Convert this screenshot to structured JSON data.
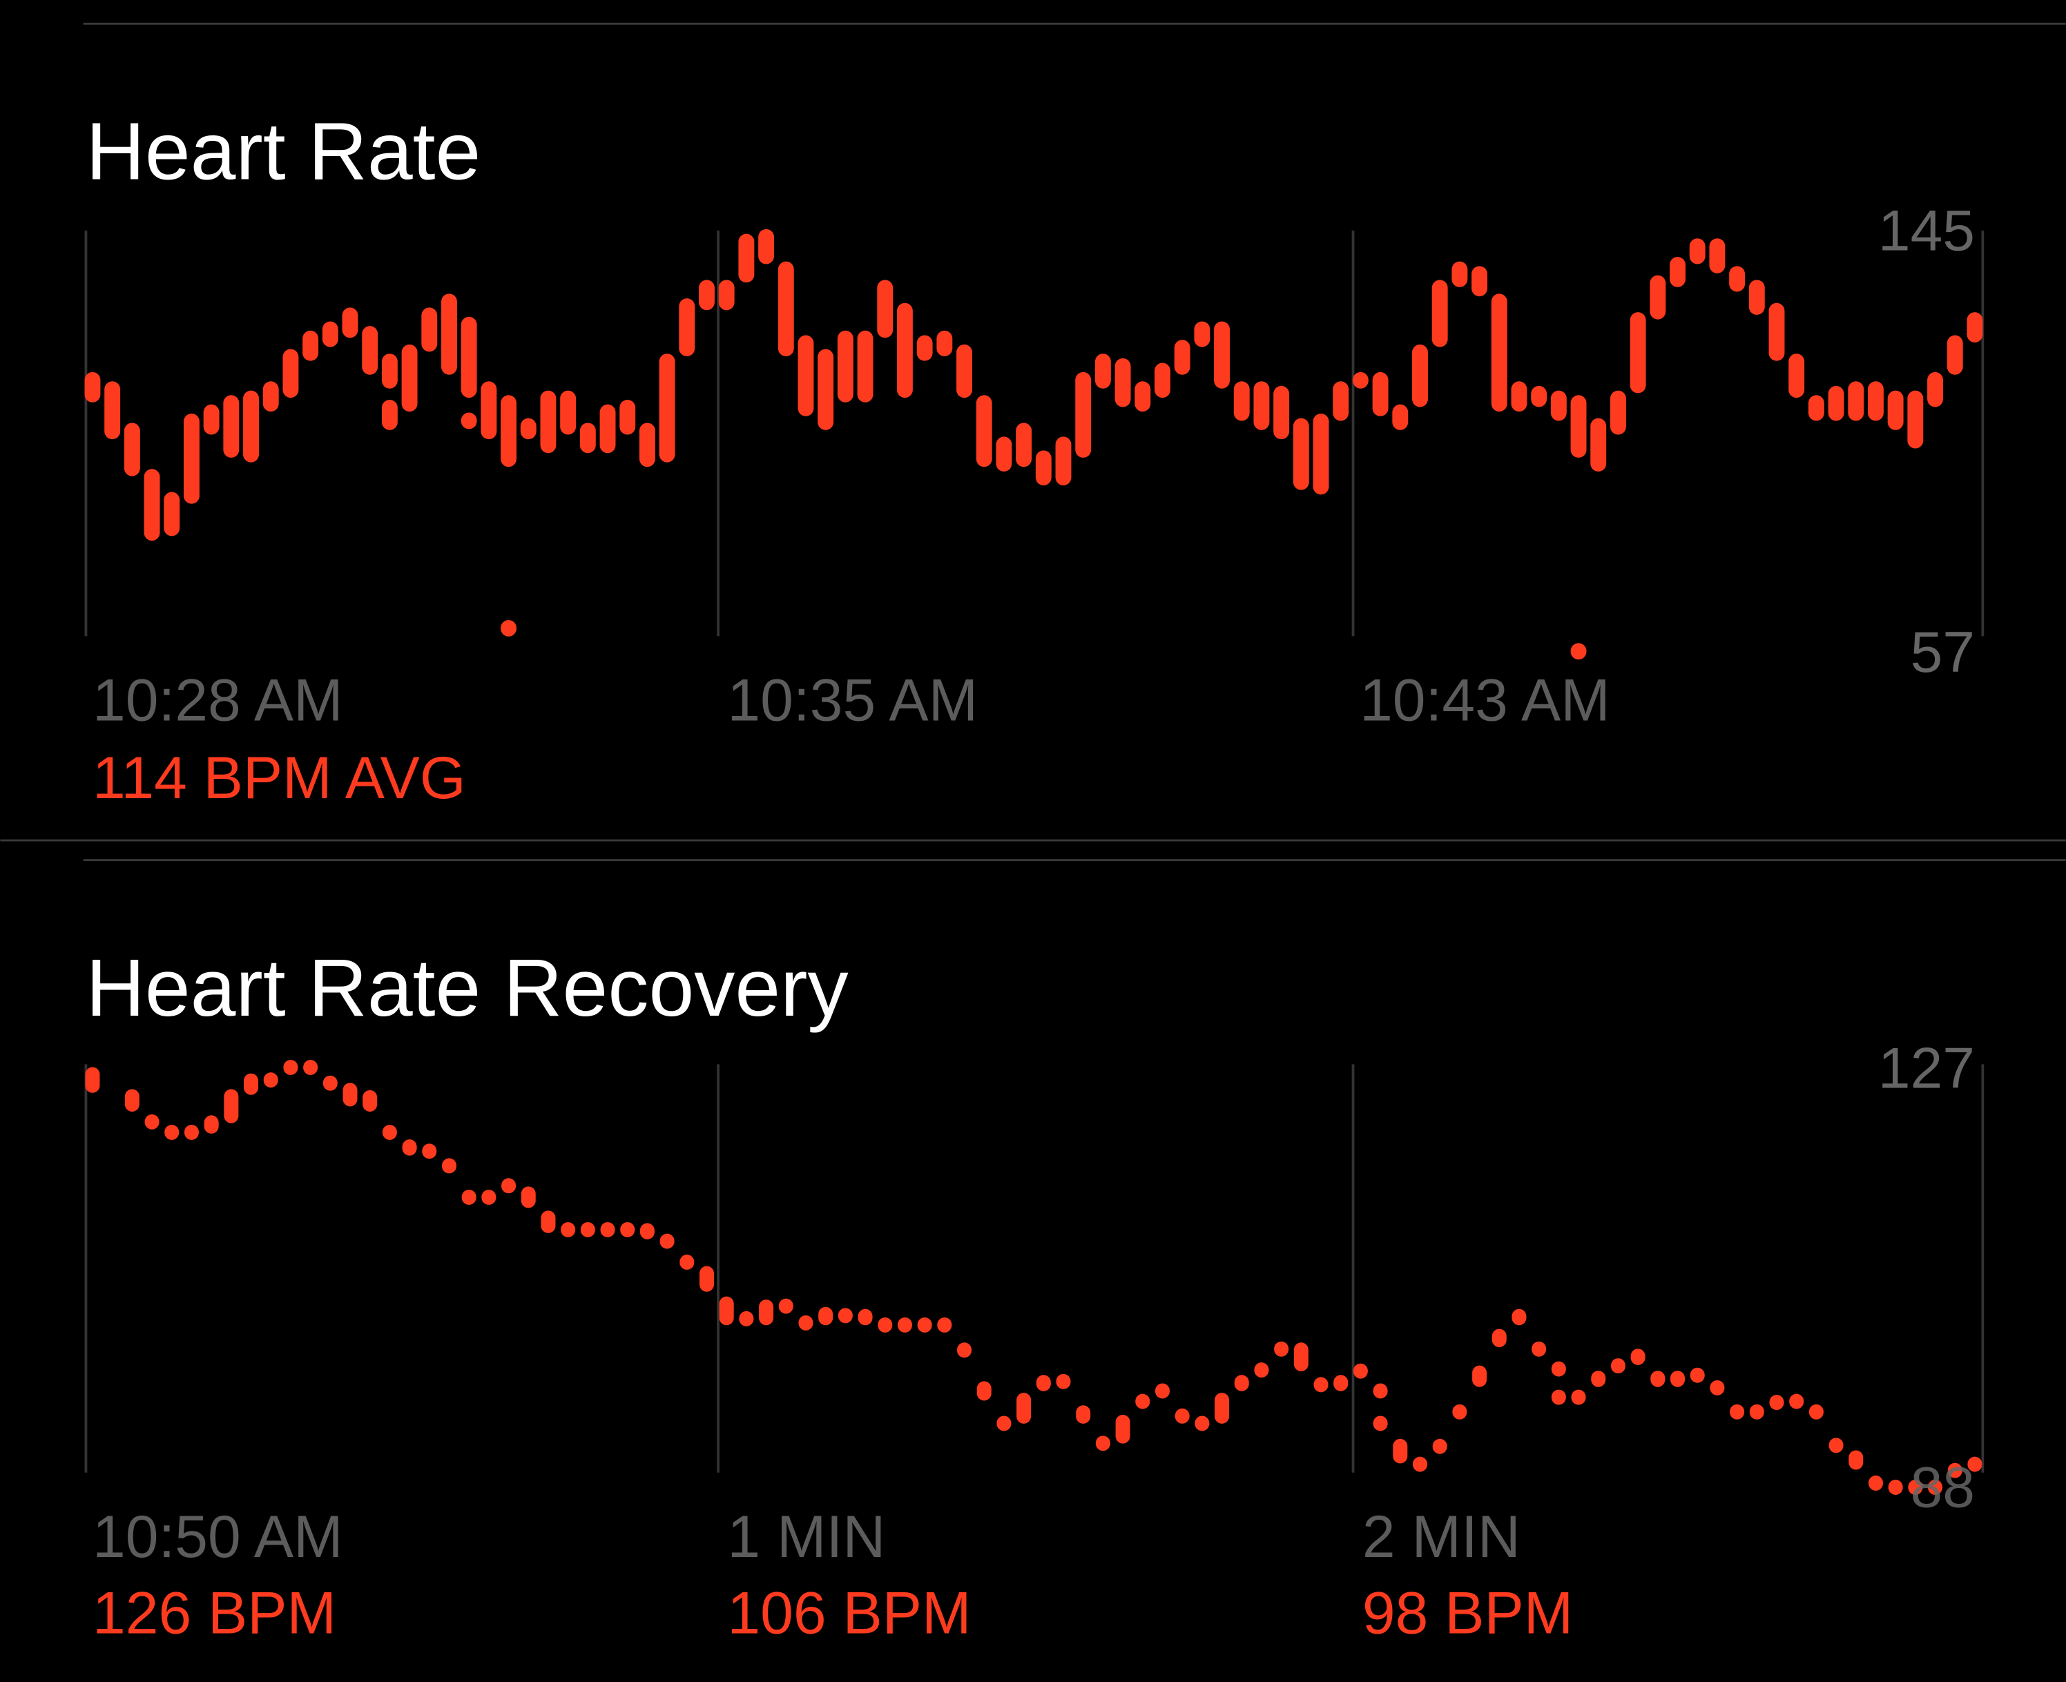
{
  "colors": {
    "accent": "#ff3b1f",
    "background": "#000000",
    "grid": "#333333",
    "label": "#5c5c5c"
  },
  "heart_rate": {
    "title": "Heart Rate",
    "y_max_label": "145",
    "y_min_label": "57",
    "time_labels": [
      "10:28 AM",
      "10:35 AM",
      "10:43 AM"
    ],
    "avg_label": "114 BPM AVG"
  },
  "recovery": {
    "title": "Heart Rate Recovery",
    "y_max_label": "127",
    "y_min_label": "88",
    "time_labels": [
      "10:50 AM",
      "1 MIN",
      "2 MIN"
    ],
    "bpm_labels": [
      "126 BPM",
      "106 BPM",
      "98 BPM"
    ]
  },
  "chart_data": [
    {
      "type": "range-bar",
      "title": "Heart Rate",
      "ylabel": "BPM",
      "ylim": [
        57,
        145
      ],
      "x_tick_labels": [
        "10:28 AM",
        "10:35 AM",
        "10:43 AM"
      ],
      "grid": true,
      "summary": "114 BPM AVG",
      "columns": [
        [
          [
            108,
            114
          ]
        ],
        [
          [
            100,
            112
          ]
        ],
        [
          [
            92,
            103
          ]
        ],
        [
          [
            78,
            93
          ]
        ],
        [
          [
            79,
            88
          ]
        ],
        [
          [
            86,
            105
          ]
        ],
        [
          [
            101,
            107
          ]
        ],
        [
          [
            96,
            109
          ]
        ],
        [
          [
            95,
            110
          ]
        ],
        [
          [
            106,
            112
          ]
        ],
        [
          [
            109,
            119
          ]
        ],
        [
          [
            117,
            123
          ]
        ],
        [
          [
            120,
            125
          ]
        ],
        [
          [
            122,
            128
          ]
        ],
        [
          [
            114,
            124
          ]
        ],
        [
          [
            111,
            118
          ],
          [
            102,
            108
          ]
        ],
        [
          [
            106,
            120
          ]
        ],
        [
          [
            119,
            128
          ]
        ],
        [
          [
            114,
            131
          ]
        ],
        [
          [
            109,
            126
          ],
          [
            105,
            105
          ]
        ],
        [
          [
            100,
            112
          ]
        ],
        [
          [
            94,
            109
          ],
          [
            60,
            60
          ]
        ],
        [
          [
            100,
            104
          ]
        ],
        [
          [
            97,
            110
          ]
        ],
        [
          [
            101,
            110
          ]
        ],
        [
          [
            97,
            103
          ]
        ],
        [
          [
            97,
            107
          ]
        ],
        [
          [
            101,
            108
          ]
        ],
        [
          [
            94,
            103
          ]
        ],
        [
          [
            95,
            118
          ]
        ],
        [
          [
            118,
            130
          ]
        ],
        [
          [
            128,
            134
          ]
        ],
        [
          [
            128,
            134
          ]
        ],
        [
          [
            134,
            144
          ]
        ],
        [
          [
            138,
            145
          ]
        ],
        [
          [
            118,
            138
          ]
        ],
        [
          [
            105,
            122
          ]
        ],
        [
          [
            102,
            119
          ]
        ],
        [
          [
            108,
            123
          ]
        ],
        [
          [
            108,
            123
          ]
        ],
        [
          [
            122,
            134
          ]
        ],
        [
          [
            109,
            129
          ]
        ],
        [
          [
            117,
            122
          ]
        ],
        [
          [
            118,
            123
          ]
        ],
        [
          [
            109,
            120
          ]
        ],
        [
          [
            94,
            109
          ]
        ],
        [
          [
            93,
            100
          ]
        ],
        [
          [
            94,
            103
          ]
        ],
        [
          [
            90,
            97
          ]
        ],
        [
          [
            90,
            100
          ]
        ],
        [
          [
            96,
            114
          ]
        ],
        [
          [
            111,
            118
          ]
        ],
        [
          [
            107,
            117
          ]
        ],
        [
          [
            106,
            112
          ]
        ],
        [
          [
            109,
            116
          ]
        ],
        [
          [
            114,
            121
          ]
        ],
        [
          [
            120,
            125
          ]
        ],
        [
          [
            111,
            125
          ]
        ],
        [
          [
            104,
            112
          ]
        ],
        [
          [
            102,
            112
          ]
        ],
        [
          [
            100,
            111
          ]
        ],
        [
          [
            89,
            104
          ]
        ],
        [
          [
            88,
            105
          ]
        ],
        [
          [
            104,
            112
          ]
        ],
        [
          [
            111,
            114
          ]
        ],
        [
          [
            105,
            114
          ]
        ],
        [
          [
            102,
            107
          ]
        ],
        [
          [
            107,
            120
          ]
        ],
        [
          [
            120,
            134
          ]
        ],
        [
          [
            133,
            138
          ]
        ],
        [
          [
            131,
            137
          ]
        ],
        [
          [
            106,
            131
          ]
        ],
        [
          [
            106,
            112
          ]
        ],
        [
          [
            107,
            111
          ]
        ],
        [
          [
            104,
            110
          ]
        ],
        [
          [
            96,
            109
          ],
          [
            55,
            55
          ]
        ],
        [
          [
            93,
            104
          ]
        ],
        [
          [
            101,
            110
          ]
        ],
        [
          [
            110,
            127
          ]
        ],
        [
          [
            126,
            135
          ]
        ],
        [
          [
            133,
            139
          ]
        ],
        [
          [
            138,
            143
          ]
        ],
        [
          [
            136,
            143
          ]
        ],
        [
          [
            132,
            137
          ]
        ],
        [
          [
            127,
            134
          ]
        ],
        [
          [
            117,
            129
          ]
        ],
        [
          [
            109,
            118
          ]
        ],
        [
          [
            104,
            109
          ]
        ],
        [
          [
            104,
            111
          ]
        ],
        [
          [
            104,
            112
          ]
        ],
        [
          [
            104,
            112
          ]
        ],
        [
          [
            102,
            110
          ]
        ],
        [
          [
            98,
            110
          ]
        ],
        [
          [
            107,
            114
          ]
        ],
        [
          [
            114,
            122
          ]
        ],
        [
          [
            121,
            127
          ]
        ]
      ]
    },
    {
      "type": "range-dot",
      "title": "Heart Rate Recovery",
      "ylabel": "BPM",
      "ylim": [
        88,
        127
      ],
      "x_tick_labels": [
        "10:50 AM",
        "1 MIN",
        "2 MIN"
      ],
      "x_tick_values": [
        "126 BPM",
        "106 BPM",
        "98 BPM"
      ],
      "grid": true,
      "columns": [
        [
          [
            124.4,
            126.6
          ]
        ],
        [],
        [
          [
            122.6,
            124.5
          ]
        ],
        [
          [
            122,
            122
          ]
        ],
        [
          [
            121,
            121
          ]
        ],
        [
          [
            121,
            121
          ]
        ],
        [
          [
            120.5,
            122
          ]
        ],
        [
          [
            121.5,
            124.5
          ]
        ],
        [
          [
            124.2,
            126
          ]
        ],
        [
          [
            126,
            126
          ]
        ],
        [
          [
            127.2,
            127.2
          ]
        ],
        [
          [
            127.2,
            127.2
          ]
        ],
        [
          [
            125.7,
            125.7
          ]
        ],
        [
          [
            123.1,
            125.1
          ]
        ],
        [
          [
            122.6,
            124.4
          ]
        ],
        [
          [
            121,
            121
          ]
        ],
        [
          [
            118.4,
            119.7
          ]
        ],
        [
          [
            119.2,
            119.2
          ]
        ],
        [
          [
            116.7,
            117.9
          ]
        ],
        [
          [
            114.8,
            114.8
          ]
        ],
        [
          [
            114.8,
            114.8
          ]
        ],
        [
          [
            115.9,
            115.9
          ]
        ],
        [
          [
            113.4,
            115.2
          ]
        ],
        [
          [
            111,
            112.9
          ]
        ],
        [
          [
            111.7,
            111.7
          ]
        ],
        [
          [
            111.7,
            111.7
          ]
        ],
        [
          [
            111.7,
            111.7
          ]
        ],
        [
          [
            111.7,
            111.7
          ]
        ],
        [
          [
            110.4,
            111.7
          ]
        ],
        [
          [
            110.6,
            110.6
          ]
        ],
        [
          [
            108.6,
            108.6
          ]
        ],
        [
          [
            105.4,
            107.6
          ]
        ],
        [
          [
            102.2,
            104.7
          ]
        ],
        [
          [
            103.2,
            103.2
          ]
        ],
        [
          [
            102.2,
            104.4
          ]
        ],
        [
          [
            104.4,
            104.4
          ]
        ],
        [
          [
            102.8,
            102.8
          ]
        ],
        [
          [
            102.2,
            103.7
          ]
        ],
        [
          [
            103.5,
            103.5
          ]
        ],
        [
          [
            102.2,
            103.5
          ]
        ],
        [
          [
            102.6,
            102.6
          ]
        ],
        [
          [
            102.6,
            102.6
          ]
        ],
        [
          [
            102.6,
            102.6
          ]
        ],
        [
          [
            102.6,
            102.6
          ]
        ],
        [
          [
            99.1,
            100.3
          ]
        ],
        [
          [
            95,
            96.6
          ]
        ],
        [
          [
            93.2,
            93.2
          ]
        ],
        [
          [
            92.8,
            95.5
          ]
        ],
        [
          [
            95.9,
            97.2
          ]
        ],
        [
          [
            97.2,
            97.2
          ]
        ],
        [
          [
            92.8,
            94.3
          ]
        ],
        [
          [
            91.3,
            91.3
          ]
        ],
        [
          [
            90.9,
            93.4
          ]
        ],
        [
          [
            95.3,
            95.3
          ]
        ],
        [
          [
            96.3,
            96.3
          ]
        ],
        [
          [
            93,
            94
          ]
        ],
        [
          [
            93.2,
            93.2
          ]
        ],
        [
          [
            92.8,
            95.5
          ]
        ],
        [
          [
            95.9,
            97.2
          ]
        ],
        [
          [
            98.3,
            98.3
          ]
        ],
        [
          [
            100.3,
            100.3
          ]
        ],
        [
          [
            97.8,
            100.3
          ]
        ],
        [
          [
            96.9,
            96.9
          ]
        ],
        [
          [
            95.9,
            97.2
          ]
        ],
        [
          [
            98.2,
            98.2
          ]
        ],
        [
          [
            96.3,
            96.3
          ],
          [
            93.2,
            93.2
          ]
        ],
        [
          [
            89,
            91.1
          ]
        ],
        [
          [
            89.3,
            89.3
          ]
        ],
        [
          [
            90.3,
            91.1
          ]
        ],
        [
          [
            94.3,
            94.3
          ]
        ],
        [
          [
            96.3,
            98.1
          ]
        ],
        [
          [
            100.1,
            101.6
          ]
        ],
        [
          [
            102.2,
            103.5
          ]
        ],
        [
          [
            100.3,
            100.3
          ]
        ],
        [
          [
            98.4,
            98.4
          ],
          [
            95.7,
            95.7
          ]
        ],
        [
          [
            95.7,
            95.7
          ]
        ],
        [
          [
            96.3,
            97.6
          ]
        ],
        [
          [
            98.7,
            98.7
          ]
        ],
        [
          [
            98.4,
            99.7
          ]
        ],
        [
          [
            96.3,
            97.6
          ]
        ],
        [
          [
            96.3,
            97.6
          ]
        ],
        [
          [
            97.8,
            97.8
          ]
        ],
        [
          [
            96.6,
            96.6
          ]
        ],
        [
          [
            94.3,
            94.3
          ]
        ],
        [
          [
            94.3,
            94.3
          ]
        ],
        [
          [
            94.3,
            95.3
          ]
        ],
        [
          [
            95.3,
            95.3
          ]
        ],
        [
          [
            94.3,
            94.3
          ]
        ],
        [
          [
            91.1,
            91.1
          ]
        ],
        [
          [
            88.4,
            90
          ]
        ],
        [
          [
            87.5,
            87.5
          ]
        ],
        [
          [
            87.1,
            87.1
          ]
        ],
        [
          [
            87.1,
            87.1
          ]
        ],
        [
          [
            87.1,
            87.1
          ]
        ],
        [
          [
            87.7,
            88.8
          ]
        ],
        [
          [
            89.3,
            89.3
          ]
        ]
      ]
    }
  ]
}
